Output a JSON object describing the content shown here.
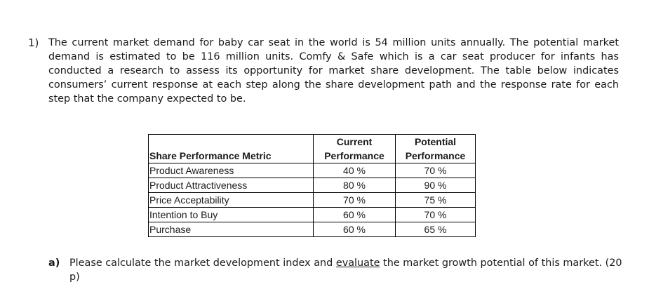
{
  "question": {
    "number": "1)",
    "paragraph": "The current market demand for baby car seat in the world is 54 million units annually. The potential market demand is estimated to be 116 million units. Comfy & Safe which is a car seat producer for infants has conducted a research to assess its opportunity for market share development. The table below indicates consumers’ current response at each step along the share development path and the response rate for each step that the company expected to be."
  },
  "table": {
    "header_top": [
      "",
      "Current",
      "Potential"
    ],
    "header_bottom": [
      "Share Performance Metric",
      "Performance",
      "Performance"
    ],
    "rows": [
      [
        "Product Awareness",
        "40 %",
        "70 %"
      ],
      [
        "Product Attractiveness",
        "80 %",
        "90 %"
      ],
      [
        "Price Acceptability",
        "70 %",
        "75 %"
      ],
      [
        "Intention to Buy",
        "60 %",
        "70 %"
      ],
      [
        "Purchase",
        "60 %",
        "65 %"
      ]
    ]
  },
  "subquestion": {
    "label": "a)",
    "text_before": "Please calculate the market development index and ",
    "text_underlined": "evaluate",
    "text_after": " the market growth potential of this market. (20 p)"
  }
}
